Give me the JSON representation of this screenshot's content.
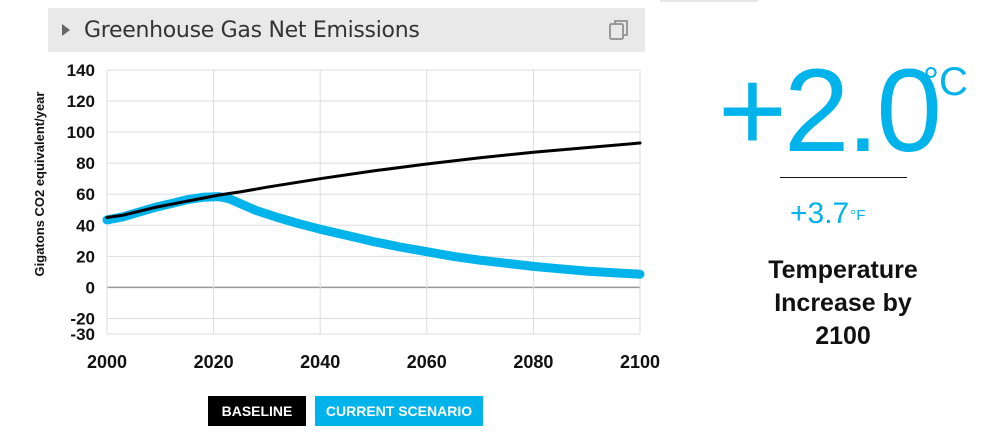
{
  "panel": {
    "title": "Greenhouse Gas Net Emissions",
    "copy_icon": "copy-icon",
    "caret_icon": "caret-right-icon"
  },
  "legend": {
    "baseline": "BASELINE",
    "current": "CURRENT SCENARIO"
  },
  "result": {
    "temp_c_value": "+2.0",
    "temp_c_unit": "°C",
    "temp_f_value": "+3.7",
    "temp_f_unit": "°F",
    "caption_line1": "Temperature",
    "caption_line2": "Increase by",
    "caption_line3": "2100"
  },
  "colors": {
    "baseline": "#000000",
    "current": "#00b3ea",
    "grid": "#dddddd",
    "zero": "#999999"
  },
  "chart_data": {
    "type": "line",
    "ylabel": "Gigatons CO2 equivalent/year",
    "xlabel": "",
    "xlim": [
      2000,
      2100
    ],
    "ylim": [
      -30,
      140
    ],
    "xticks": [
      "2000",
      "2020",
      "2040",
      "2060",
      "2080",
      "2100"
    ],
    "yticks": [
      "140",
      "120",
      "100",
      "80",
      "60",
      "40",
      "20",
      "0",
      "-20",
      "-30"
    ],
    "grid": true,
    "legend_position": "bottom",
    "series": [
      {
        "name": "BASELINE",
        "color": "#000000",
        "x": [
          2000,
          2003,
          2006,
          2009,
          2012,
          2015,
          2018,
          2021,
          2025,
          2030,
          2040,
          2050,
          2060,
          2070,
          2080,
          2090,
          2100
        ],
        "values": [
          45,
          46.5,
          49,
          51.5,
          53.5,
          55.5,
          57.5,
          59.5,
          61.5,
          64.5,
          70,
          75,
          79.5,
          83.5,
          87,
          90,
          93
        ]
      },
      {
        "name": "CURRENT SCENARIO",
        "color": "#00b3ea",
        "x": [
          2000,
          2003,
          2006,
          2009,
          2012,
          2015,
          2018,
          2021,
          2023,
          2025,
          2028,
          2032,
          2036,
          2040,
          2045,
          2050,
          2055,
          2060,
          2065,
          2070,
          2075,
          2080,
          2085,
          2090,
          2095,
          2100
        ],
        "values": [
          43.5,
          45.5,
          48.5,
          51.5,
          54,
          56.5,
          58,
          58.5,
          57,
          54,
          49.5,
          45,
          41,
          37.5,
          33.5,
          29.5,
          26,
          23,
          20,
          17.5,
          15.5,
          13.5,
          12,
          10.5,
          9.5,
          8.5
        ]
      }
    ]
  }
}
